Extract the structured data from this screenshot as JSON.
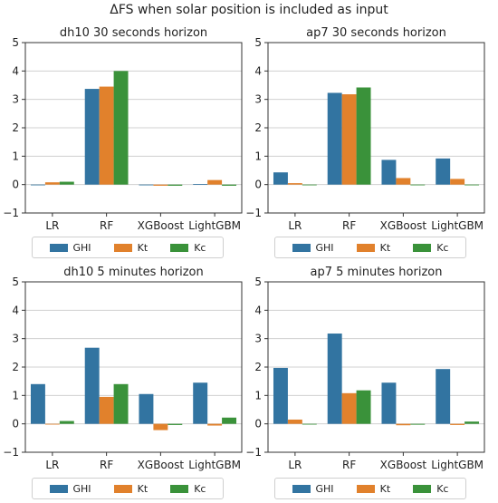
{
  "suptitle": "ΔFS when solar position is included as input",
  "colors": {
    "GHI": "#3274a1",
    "Kt": "#e1812c",
    "Kc": "#3a923a"
  },
  "legend_labels": [
    "GHI",
    "Kt",
    "Kc"
  ],
  "chart_data": [
    {
      "type": "bar",
      "title": "dh10 30 seconds horizon",
      "categories": [
        "LR",
        "RF",
        "XGBoost",
        "LightGBM"
      ],
      "ylim": [
        -1,
        5
      ],
      "yticks": [
        "−1",
        "0",
        "1",
        "2",
        "3",
        "4",
        "5"
      ],
      "grid": true,
      "legend": "bottom",
      "series": [
        {
          "name": "GHI",
          "values": [
            0.0,
            3.37,
            -0.02,
            0.02
          ]
        },
        {
          "name": "Kt",
          "values": [
            0.08,
            3.45,
            -0.04,
            0.16
          ]
        },
        {
          "name": "Kc",
          "values": [
            0.1,
            4.0,
            -0.04,
            -0.04
          ]
        }
      ]
    },
    {
      "type": "bar",
      "title": "ap7 30 seconds horizon",
      "categories": [
        "LR",
        "RF",
        "XGBoost",
        "LightGBM"
      ],
      "ylim": [
        -1,
        5
      ],
      "yticks": [
        "−1",
        "0",
        "1",
        "2",
        "3",
        "4",
        "5"
      ],
      "grid": true,
      "legend": "bottom",
      "series": [
        {
          "name": "GHI",
          "values": [
            0.43,
            3.23,
            0.87,
            0.92
          ]
        },
        {
          "name": "Kt",
          "values": [
            0.05,
            3.18,
            0.23,
            0.2
          ]
        },
        {
          "name": "Kc",
          "values": [
            0.0,
            3.42,
            -0.02,
            0.0
          ]
        }
      ]
    },
    {
      "type": "bar",
      "title": "dh10 5 minutes horizon",
      "categories": [
        "LR",
        "RF",
        "XGBoost",
        "LightGBM"
      ],
      "ylim": [
        -1,
        5
      ],
      "yticks": [
        "−1",
        "0",
        "1",
        "2",
        "3",
        "4",
        "5"
      ],
      "grid": true,
      "legend": "bottom",
      "series": [
        {
          "name": "GHI",
          "values": [
            1.4,
            2.68,
            1.05,
            1.45
          ]
        },
        {
          "name": "Kt",
          "values": [
            -0.02,
            0.95,
            -0.22,
            -0.06
          ]
        },
        {
          "name": "Kc",
          "values": [
            0.1,
            1.4,
            -0.04,
            0.22
          ]
        }
      ]
    },
    {
      "type": "bar",
      "title": "ap7 5 minutes horizon",
      "categories": [
        "LR",
        "RF",
        "XGBoost",
        "LightGBM"
      ],
      "ylim": [
        -1,
        5
      ],
      "yticks": [
        "−1",
        "0",
        "1",
        "2",
        "3",
        "4",
        "5"
      ],
      "grid": true,
      "legend": "bottom",
      "series": [
        {
          "name": "GHI",
          "values": [
            1.97,
            3.18,
            1.45,
            1.93
          ]
        },
        {
          "name": "Kt",
          "values": [
            0.15,
            1.08,
            -0.05,
            -0.04
          ]
        },
        {
          "name": "Kc",
          "values": [
            0.0,
            1.18,
            -0.03,
            0.08
          ]
        }
      ]
    }
  ]
}
